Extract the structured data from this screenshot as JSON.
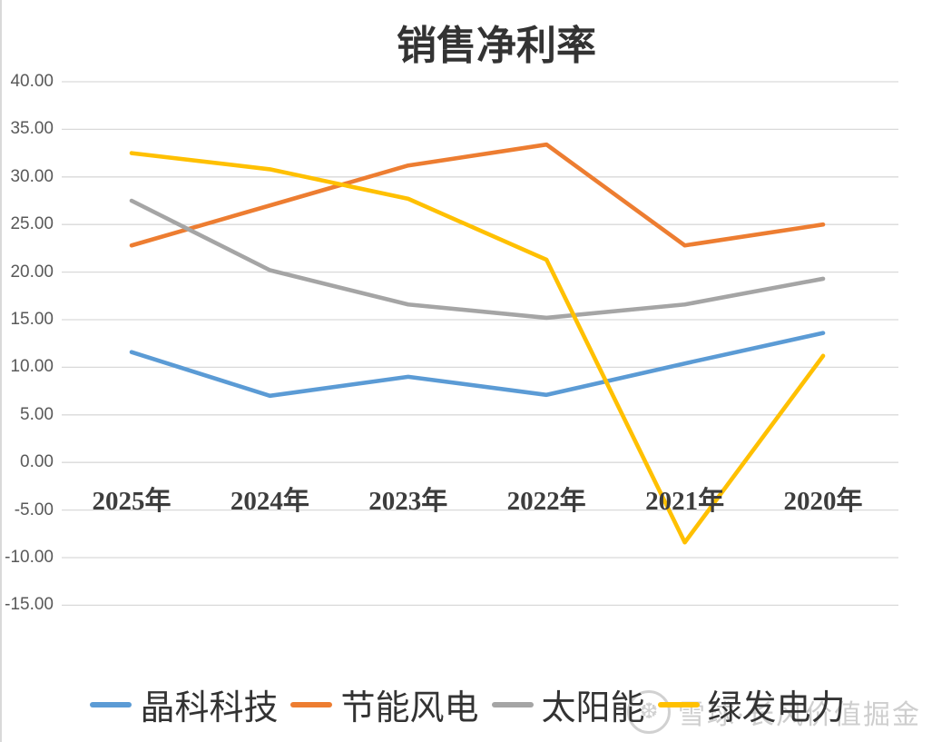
{
  "chart_data": {
    "type": "line",
    "title": "销售净利率",
    "categories": [
      "2025年",
      "2024年",
      "2023年",
      "2022年",
      "2021年",
      "2020年"
    ],
    "series": [
      {
        "name": "晶科科技",
        "color": "#5B9BD5",
        "values": [
          11.6,
          7.0,
          9.0,
          7.1,
          10.4,
          13.6
        ]
      },
      {
        "name": "节能风电",
        "color": "#ED7D31",
        "values": [
          22.8,
          27.0,
          31.2,
          33.4,
          22.8,
          25.0
        ]
      },
      {
        "name": "太阳能",
        "color": "#A5A5A5",
        "values": [
          27.5,
          20.2,
          16.6,
          15.2,
          16.6,
          19.3
        ]
      },
      {
        "name": "绿发电力",
        "color": "#FFC000",
        "values": [
          32.5,
          30.8,
          27.7,
          21.3,
          -8.4,
          11.2
        ]
      }
    ],
    "y_axis": {
      "tick_labels": [
        "40.00",
        "35.00",
        "30.00",
        "25.00",
        "20.00",
        "15.00",
        "10.00",
        "5.00",
        "0.00",
        "-5.00",
        "-10.00",
        "-15.00"
      ],
      "min": -15,
      "max": 40,
      "step": 5
    },
    "grid": "horizontal",
    "legend_position": "bottom",
    "colors": {
      "gridline": "#D9D9D9",
      "title_text": "#333333",
      "axis_tick_text": "#595959",
      "category_text": "#3d3d3d"
    }
  },
  "watermark": {
    "logo": "snowball-logo",
    "text": "雪球·长风价值掘金"
  }
}
